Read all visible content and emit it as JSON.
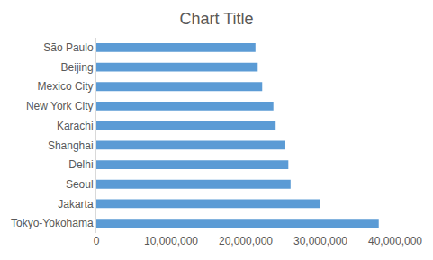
{
  "chart_data": {
    "type": "bar",
    "orientation": "horizontal",
    "title": "Chart Title",
    "categories": [
      "Tokyo-Yokohama",
      "Jakarta",
      "Seoul",
      "Delhi",
      "Shanghai",
      "Karachi",
      "New York City",
      "Mexico City",
      "Beijing",
      "São Paulo"
    ],
    "values": [
      37800000,
      30000000,
      26000000,
      25700000,
      25300000,
      24000000,
      23700000,
      22200000,
      21600000,
      21300000
    ],
    "color": "#5b9bd5",
    "xlim": [
      0,
      40000000
    ],
    "xticks": [
      0,
      {
        "value": 10000000,
        "label": "10,000,000"
      },
      {
        "value": 20000000,
        "label": "20,000,000"
      },
      {
        "value": 30000000,
        "label": "30,000,000"
      },
      {
        "value": 40000000,
        "label": "40,000,000"
      }
    ],
    "grid": false
  }
}
